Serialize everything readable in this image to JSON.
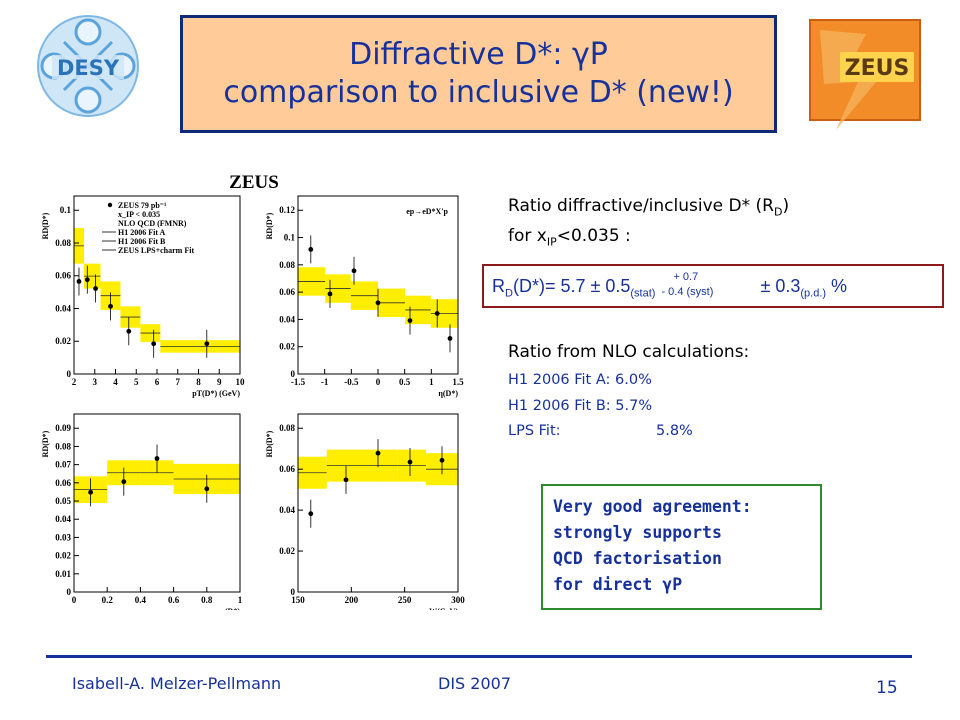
{
  "slide": {
    "title_line1": "Diffractive D*: γP",
    "title_line2": "comparison to inclusive D* (new!)",
    "desy_logo_text": "DESY",
    "zeus_logo_text": "ZEUS"
  },
  "figure": {
    "header": "ZEUS",
    "legend": [
      "ZEUS 79 pb⁻¹",
      "x_IP < 0.035",
      "NLO QCD (FMNR)",
      "H1 2006 Fit A",
      "H1 2006 Fit B",
      "ZEUS LPS+charm Fit"
    ],
    "process_label": "ep→eD*X'p",
    "panels": [
      {
        "id": "pt",
        "xlabel": "pT(D*) (GeV)",
        "ylabel": "RD(D*)",
        "xticks": [
          "2",
          "3",
          "4",
          "5",
          "6",
          "7",
          "8",
          "9",
          "10"
        ],
        "yticks": [
          "0",
          "0.02",
          "0.04",
          "0.06",
          "0.08",
          "0.1"
        ]
      },
      {
        "id": "eta",
        "xlabel": "η(D*)",
        "ylabel": "RD(D*)",
        "xticks": [
          "-1.5",
          "-1",
          "-0.5",
          "0",
          "0.5",
          "1",
          "1.5"
        ],
        "yticks": [
          "0",
          "0.02",
          "0.04",
          "0.06",
          "0.08",
          "0.1",
          "0.12"
        ]
      },
      {
        "id": "z",
        "xlabel": "z(D*)",
        "ylabel": "RD(D*)",
        "xticks": [
          "0",
          "0.2",
          "0.4",
          "0.6",
          "0.8",
          "1"
        ],
        "yticks": [
          "0",
          "0.01",
          "0.02",
          "0.03",
          "0.04",
          "0.05",
          "0.06",
          "0.07",
          "0.08",
          "0.09"
        ]
      },
      {
        "id": "w",
        "xlabel": "W(GeV)",
        "ylabel": "RD(D*)",
        "xticks": [
          "150",
          "200",
          "250",
          "300"
        ],
        "yticks": [
          "0",
          "0.02",
          "0.04",
          "0.06",
          "0.08"
        ]
      }
    ]
  },
  "text": {
    "ratio_line1": "Ratio diffractive/inclusive D* (R",
    "ratio_line1_sub": "D",
    "ratio_line1_end": ")",
    "ratio_line2": "for x",
    "ratio_line2_sub": "IP",
    "ratio_line2_end": "<0.035 :",
    "rd_lhs": "R",
    "rd_lhs_sub": "D",
    "rd_formula": "(D*)= 5.7 ± 0.5",
    "rd_stat": "(stat)",
    "rd_plus": "+ 0.7",
    "rd_minus": "- 0.4 (syst)",
    "rd_pd": " ± 0.3",
    "rd_pd_sub": "(p.d.)",
    "rd_percent": " %",
    "nlo_head": "Ratio from NLO calculations:",
    "fit_a": "H1 2006 Fit A: 6.0%",
    "fit_b": "H1 2006 Fit B: 5.7%",
    "fit_lps_label": "LPS Fit:",
    "fit_lps_value": "5.8%",
    "agreement": [
      "Very good agreement:",
      "strongly supports",
      "QCD factorisation",
      "for direct γP"
    ]
  },
  "footer": {
    "author": "Isabell-A. Melzer-Pellmann",
    "conference": "DIS 2007",
    "page": "15"
  },
  "colors": {
    "title_bg": "#ffcc99",
    "title_border": "#0e2a78",
    "text_blue": "#16319a",
    "band_yellow": "#ffee00",
    "rd_border": "#8b1a1a",
    "agree_border": "#2e8b2e"
  }
}
